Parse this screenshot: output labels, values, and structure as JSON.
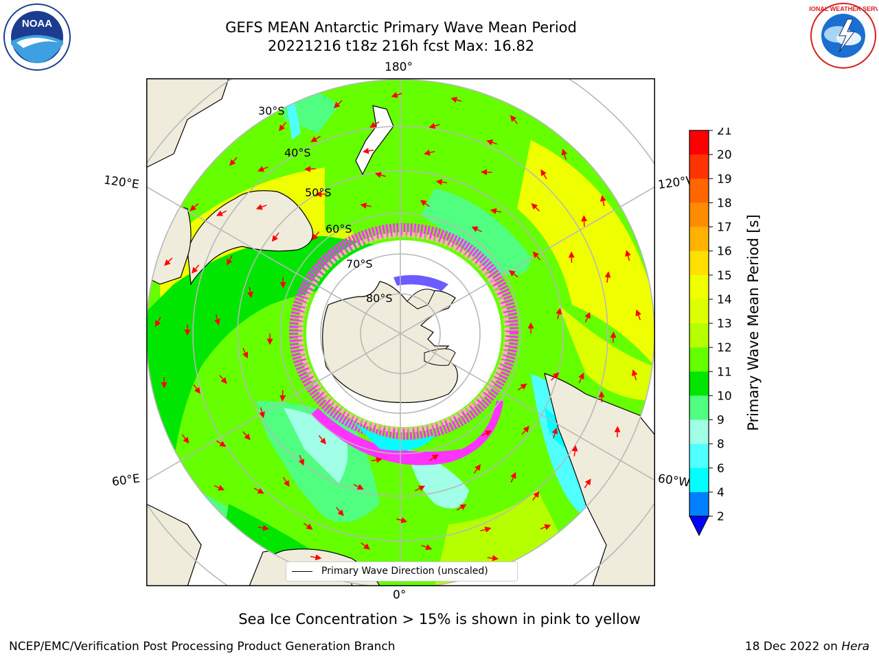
{
  "title": {
    "line1": "GEFS MEAN Antarctic Primary Wave Mean Period",
    "line2": "20221216 t18z 216h fcst   Max: 16.82"
  },
  "map": {
    "projection": "south-polar-stereographic",
    "lon_labels": {
      "top": "180°",
      "bottom": "0°",
      "left_upper": "120°E",
      "right_upper": "120°W",
      "left_lower": "60°E",
      "right_lower": "60°W"
    },
    "lat_labels": [
      "30°S",
      "40°S",
      "50°S",
      "60°S",
      "70°S",
      "80°S"
    ],
    "legend": "Primary Wave Direction (unscaled)",
    "land_color": "#efecdc",
    "arrow_color": "#ff0000"
  },
  "colorbar": {
    "label": "Primary Wave Mean Period [s]",
    "ticks": [
      "21",
      "20",
      "19",
      "18",
      "17",
      "16",
      "15",
      "14",
      "13",
      "12",
      "11",
      "10",
      "9",
      "8",
      "6",
      "4",
      "2"
    ],
    "levels": [
      {
        "max": 21,
        "color": "#ff0000"
      },
      {
        "max": 20,
        "color": "#ff3300"
      },
      {
        "max": 19,
        "color": "#ff6600"
      },
      {
        "max": 18,
        "color": "#ff8c00"
      },
      {
        "max": 17,
        "color": "#ffb300"
      },
      {
        "max": 16,
        "color": "#ffe000"
      },
      {
        "max": 15,
        "color": "#f0ff00"
      },
      {
        "max": 14,
        "color": "#ddff00"
      },
      {
        "max": 13,
        "color": "#b5ff00"
      },
      {
        "max": 12,
        "color": "#66ff00"
      },
      {
        "max": 11,
        "color": "#00e600"
      },
      {
        "max": 10,
        "color": "#50ff80"
      },
      {
        "max": 9,
        "color": "#a0ffe6"
      },
      {
        "max": 8,
        "color": "#50ffff"
      },
      {
        "max": 6,
        "color": "#00ffff"
      },
      {
        "max": 4,
        "color": "#0080ff"
      }
    ],
    "under_color": "#0000ff"
  },
  "subtitle": "Sea Ice Concentration > 15% is shown in pink to yellow",
  "footer": {
    "left": "NCEP/EMC/Verification Post Processing Product Generation Branch",
    "right_prefix": "18 Dec 2022 on ",
    "right_machine": "Hera"
  },
  "logos": {
    "noaa_text": "NOAA",
    "nws_text": "NATIONAL WEATHER SERVICE"
  }
}
